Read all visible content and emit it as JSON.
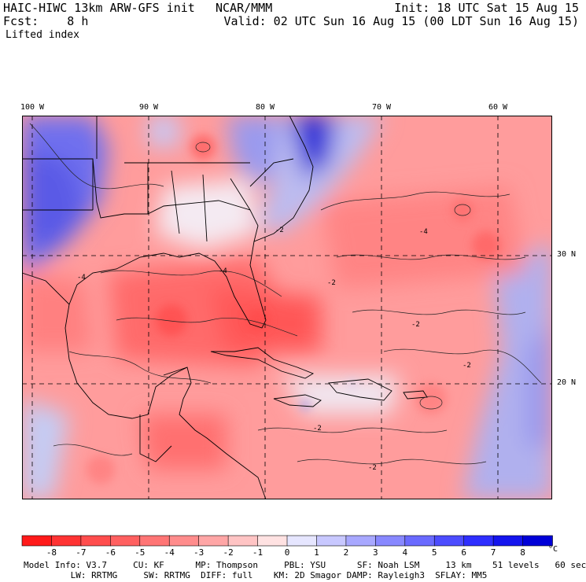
{
  "header": {
    "model_title": "HAIC-HIWC 13km ARW-GFS init",
    "org": "NCAR/MMM",
    "init": "Init: 18 UTC Sat 15 Aug 15",
    "fcst": "Fcst:    8 h",
    "valid": "Valid: 02 UTC Sun 16 Aug 15 (00 LDT Sun 16 Aug 15)",
    "field": "Lifted index"
  },
  "map": {
    "lon_labels": [
      "100 W",
      "90 W",
      "80 W",
      "70 W",
      "60 W"
    ],
    "lat_labels": [
      "30 N",
      "20 N"
    ],
    "contour_labels": [
      "-4",
      "-2",
      "-2",
      "-2",
      "-4",
      "-2",
      "-4",
      "-2",
      "-2"
    ]
  },
  "colorbar": {
    "ticks": [
      "-8",
      "-7",
      "-6",
      "-5",
      "-4",
      "-3",
      "-2",
      "-1",
      "0",
      "1",
      "2",
      "3",
      "4",
      "5",
      "6",
      "7",
      "8"
    ],
    "unit": "°C",
    "colors": [
      "#ff1a1a",
      "#ff3333",
      "#ff4d4d",
      "#ff6060",
      "#ff7575",
      "#ff8c8c",
      "#ffa6a6",
      "#ffc4c4",
      "#ffe2e2",
      "#e6e6ff",
      "#c8c8ff",
      "#a8a8ff",
      "#8888ff",
      "#6a6aff",
      "#4c4cff",
      "#2e2eff",
      "#1414ee",
      "#0000d8"
    ]
  },
  "info": {
    "line1": "Model Info: V3.7     CU: KF      MP: Thompson     PBL: YSU      SF: Noah LSM     13 km    51 levels   60 sec",
    "line2": "         LW: RRTMG     SW: RRTMG  DIFF: full    KM: 2D Smagor DAMP: Rayleigh3  SFLAY: MM5"
  }
}
